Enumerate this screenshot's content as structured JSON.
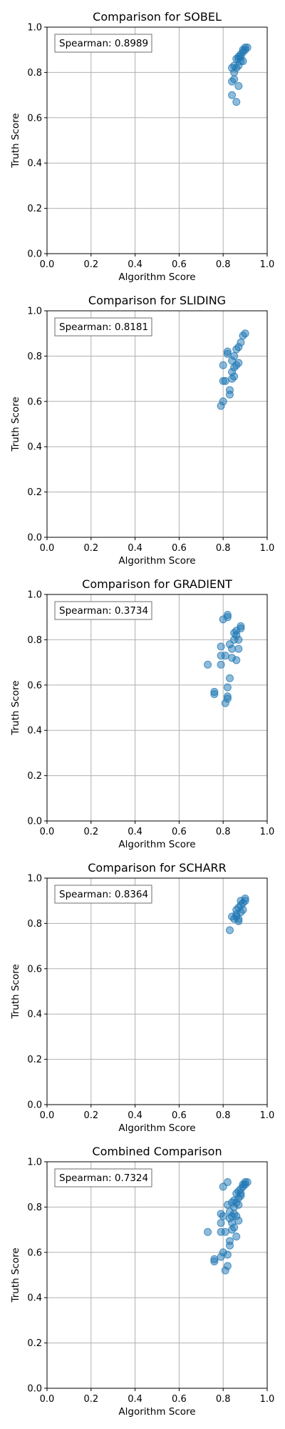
{
  "chart_data": [
    {
      "type": "scatter",
      "title": "Comparison for SOBEL",
      "xlabel": "Algorithm Score",
      "ylabel": "Truth Score",
      "xlim": [
        0,
        1
      ],
      "ylim": [
        0,
        1
      ],
      "xticks": [
        "0.0",
        "0.2",
        "0.4",
        "0.6",
        "0.8",
        "1.0"
      ],
      "yticks": [
        "0.0",
        "0.2",
        "0.4",
        "0.6",
        "0.8",
        "1.0"
      ],
      "grid": true,
      "annotation": "Spearman: 0.8989",
      "points": [
        [
          0.84,
          0.76
        ],
        [
          0.85,
          0.77
        ],
        [
          0.84,
          0.7
        ],
        [
          0.86,
          0.67
        ],
        [
          0.87,
          0.74
        ],
        [
          0.84,
          0.82
        ],
        [
          0.85,
          0.83
        ],
        [
          0.86,
          0.82
        ],
        [
          0.87,
          0.83
        ],
        [
          0.86,
          0.86
        ],
        [
          0.87,
          0.87
        ],
        [
          0.88,
          0.88
        ],
        [
          0.88,
          0.85
        ],
        [
          0.89,
          0.9
        ],
        [
          0.9,
          0.91
        ],
        [
          0.91,
          0.91
        ],
        [
          0.9,
          0.9
        ],
        [
          0.89,
          0.89
        ],
        [
          0.88,
          0.87
        ],
        [
          0.87,
          0.86
        ],
        [
          0.85,
          0.8
        ],
        [
          0.89,
          0.85
        ]
      ]
    },
    {
      "type": "scatter",
      "title": "Comparison for SLIDING",
      "xlabel": "Algorithm Score",
      "ylabel": "Truth Score",
      "xlim": [
        0,
        1
      ],
      "ylim": [
        0,
        1
      ],
      "xticks": [
        "0.0",
        "0.2",
        "0.4",
        "0.6",
        "0.8",
        "1.0"
      ],
      "yticks": [
        "0.0",
        "0.2",
        "0.4",
        "0.6",
        "0.8",
        "1.0"
      ],
      "grid": true,
      "annotation": "Spearman: 0.8181",
      "points": [
        [
          0.79,
          0.58
        ],
        [
          0.8,
          0.6
        ],
        [
          0.8,
          0.69
        ],
        [
          0.81,
          0.69
        ],
        [
          0.8,
          0.76
        ],
        [
          0.82,
          0.81
        ],
        [
          0.82,
          0.82
        ],
        [
          0.83,
          0.63
        ],
        [
          0.83,
          0.65
        ],
        [
          0.84,
          0.7
        ],
        [
          0.84,
          0.73
        ],
        [
          0.85,
          0.71
        ],
        [
          0.85,
          0.75
        ],
        [
          0.84,
          0.78
        ],
        [
          0.86,
          0.76
        ],
        [
          0.86,
          0.83
        ],
        [
          0.87,
          0.84
        ],
        [
          0.88,
          0.86
        ],
        [
          0.89,
          0.89
        ],
        [
          0.9,
          0.9
        ],
        [
          0.87,
          0.77
        ],
        [
          0.85,
          0.8
        ]
      ]
    },
    {
      "type": "scatter",
      "title": "Comparison for GRADIENT",
      "xlabel": "Algorithm Score",
      "ylabel": "Truth Score",
      "xlim": [
        0,
        1
      ],
      "ylim": [
        0,
        1
      ],
      "xticks": [
        "0.0",
        "0.2",
        "0.4",
        "0.6",
        "0.8",
        "1.0"
      ],
      "yticks": [
        "0.0",
        "0.2",
        "0.4",
        "0.6",
        "0.8",
        "1.0"
      ],
      "grid": true,
      "annotation": "Spearman: 0.3734",
      "points": [
        [
          0.73,
          0.69
        ],
        [
          0.76,
          0.57
        ],
        [
          0.76,
          0.56
        ],
        [
          0.79,
          0.69
        ],
        [
          0.79,
          0.73
        ],
        [
          0.79,
          0.77
        ],
        [
          0.8,
          0.89
        ],
        [
          0.81,
          0.52
        ],
        [
          0.82,
          0.54
        ],
        [
          0.82,
          0.55
        ],
        [
          0.82,
          0.59
        ],
        [
          0.83,
          0.63
        ],
        [
          0.82,
          0.91
        ],
        [
          0.82,
          0.9
        ],
        [
          0.83,
          0.78
        ],
        [
          0.84,
          0.72
        ],
        [
          0.84,
          0.76
        ],
        [
          0.85,
          0.8
        ],
        [
          0.85,
          0.83
        ],
        [
          0.86,
          0.82
        ],
        [
          0.86,
          0.84
        ],
        [
          0.87,
          0.76
        ],
        [
          0.88,
          0.86
        ],
        [
          0.88,
          0.85
        ],
        [
          0.87,
          0.8
        ],
        [
          0.86,
          0.71
        ],
        [
          0.81,
          0.73
        ]
      ]
    },
    {
      "type": "scatter",
      "title": "Comparison for SCHARR",
      "xlabel": "Algorithm Score",
      "ylabel": "Truth Score",
      "xlim": [
        0,
        1
      ],
      "ylim": [
        0,
        1
      ],
      "xticks": [
        "0.0",
        "0.2",
        "0.4",
        "0.6",
        "0.8",
        "1.0"
      ],
      "yticks": [
        "0.0",
        "0.2",
        "0.4",
        "0.6",
        "0.8",
        "1.0"
      ],
      "grid": true,
      "annotation": "Spearman: 0.8364",
      "points": [
        [
          0.83,
          0.77
        ],
        [
          0.84,
          0.83
        ],
        [
          0.85,
          0.82
        ],
        [
          0.86,
          0.84
        ],
        [
          0.86,
          0.86
        ],
        [
          0.87,
          0.81
        ],
        [
          0.87,
          0.87
        ],
        [
          0.88,
          0.88
        ],
        [
          0.88,
          0.9
        ],
        [
          0.89,
          0.89
        ],
        [
          0.9,
          0.9
        ],
        [
          0.9,
          0.91
        ],
        [
          0.89,
          0.86
        ],
        [
          0.88,
          0.85
        ],
        [
          0.86,
          0.83
        ],
        [
          0.87,
          0.82
        ]
      ]
    },
    {
      "type": "scatter",
      "title": "Combined Comparison",
      "xlabel": "Algorithm Score",
      "ylabel": "Truth Score",
      "xlim": [
        0,
        1
      ],
      "ylim": [
        0,
        1
      ],
      "xticks": [
        "0.0",
        "0.2",
        "0.4",
        "0.6",
        "0.8",
        "1.0"
      ],
      "yticks": [
        "0.0",
        "0.2",
        "0.4",
        "0.6",
        "0.8",
        "1.0"
      ],
      "grid": true,
      "annotation": "Spearman: 0.7324",
      "points": [
        [
          0.73,
          0.69
        ],
        [
          0.76,
          0.57
        ],
        [
          0.76,
          0.56
        ],
        [
          0.79,
          0.58
        ],
        [
          0.79,
          0.69
        ],
        [
          0.79,
          0.73
        ],
        [
          0.79,
          0.77
        ],
        [
          0.8,
          0.89
        ],
        [
          0.8,
          0.6
        ],
        [
          0.8,
          0.76
        ],
        [
          0.81,
          0.52
        ],
        [
          0.82,
          0.54
        ],
        [
          0.82,
          0.59
        ],
        [
          0.82,
          0.81
        ],
        [
          0.82,
          0.91
        ],
        [
          0.83,
          0.63
        ],
        [
          0.83,
          0.65
        ],
        [
          0.83,
          0.78
        ],
        [
          0.84,
          0.7
        ],
        [
          0.84,
          0.73
        ],
        [
          0.84,
          0.76
        ],
        [
          0.84,
          0.82
        ],
        [
          0.85,
          0.71
        ],
        [
          0.85,
          0.77
        ],
        [
          0.85,
          0.8
        ],
        [
          0.85,
          0.83
        ],
        [
          0.86,
          0.67
        ],
        [
          0.86,
          0.76
        ],
        [
          0.86,
          0.82
        ],
        [
          0.86,
          0.86
        ],
        [
          0.87,
          0.74
        ],
        [
          0.87,
          0.84
        ],
        [
          0.87,
          0.87
        ],
        [
          0.88,
          0.85
        ],
        [
          0.88,
          0.88
        ],
        [
          0.89,
          0.89
        ],
        [
          0.89,
          0.9
        ],
        [
          0.9,
          0.9
        ],
        [
          0.9,
          0.91
        ],
        [
          0.91,
          0.91
        ],
        [
          0.88,
          0.86
        ],
        [
          0.87,
          0.81
        ],
        [
          0.83,
          0.75
        ],
        [
          0.81,
          0.69
        ]
      ]
    }
  ]
}
